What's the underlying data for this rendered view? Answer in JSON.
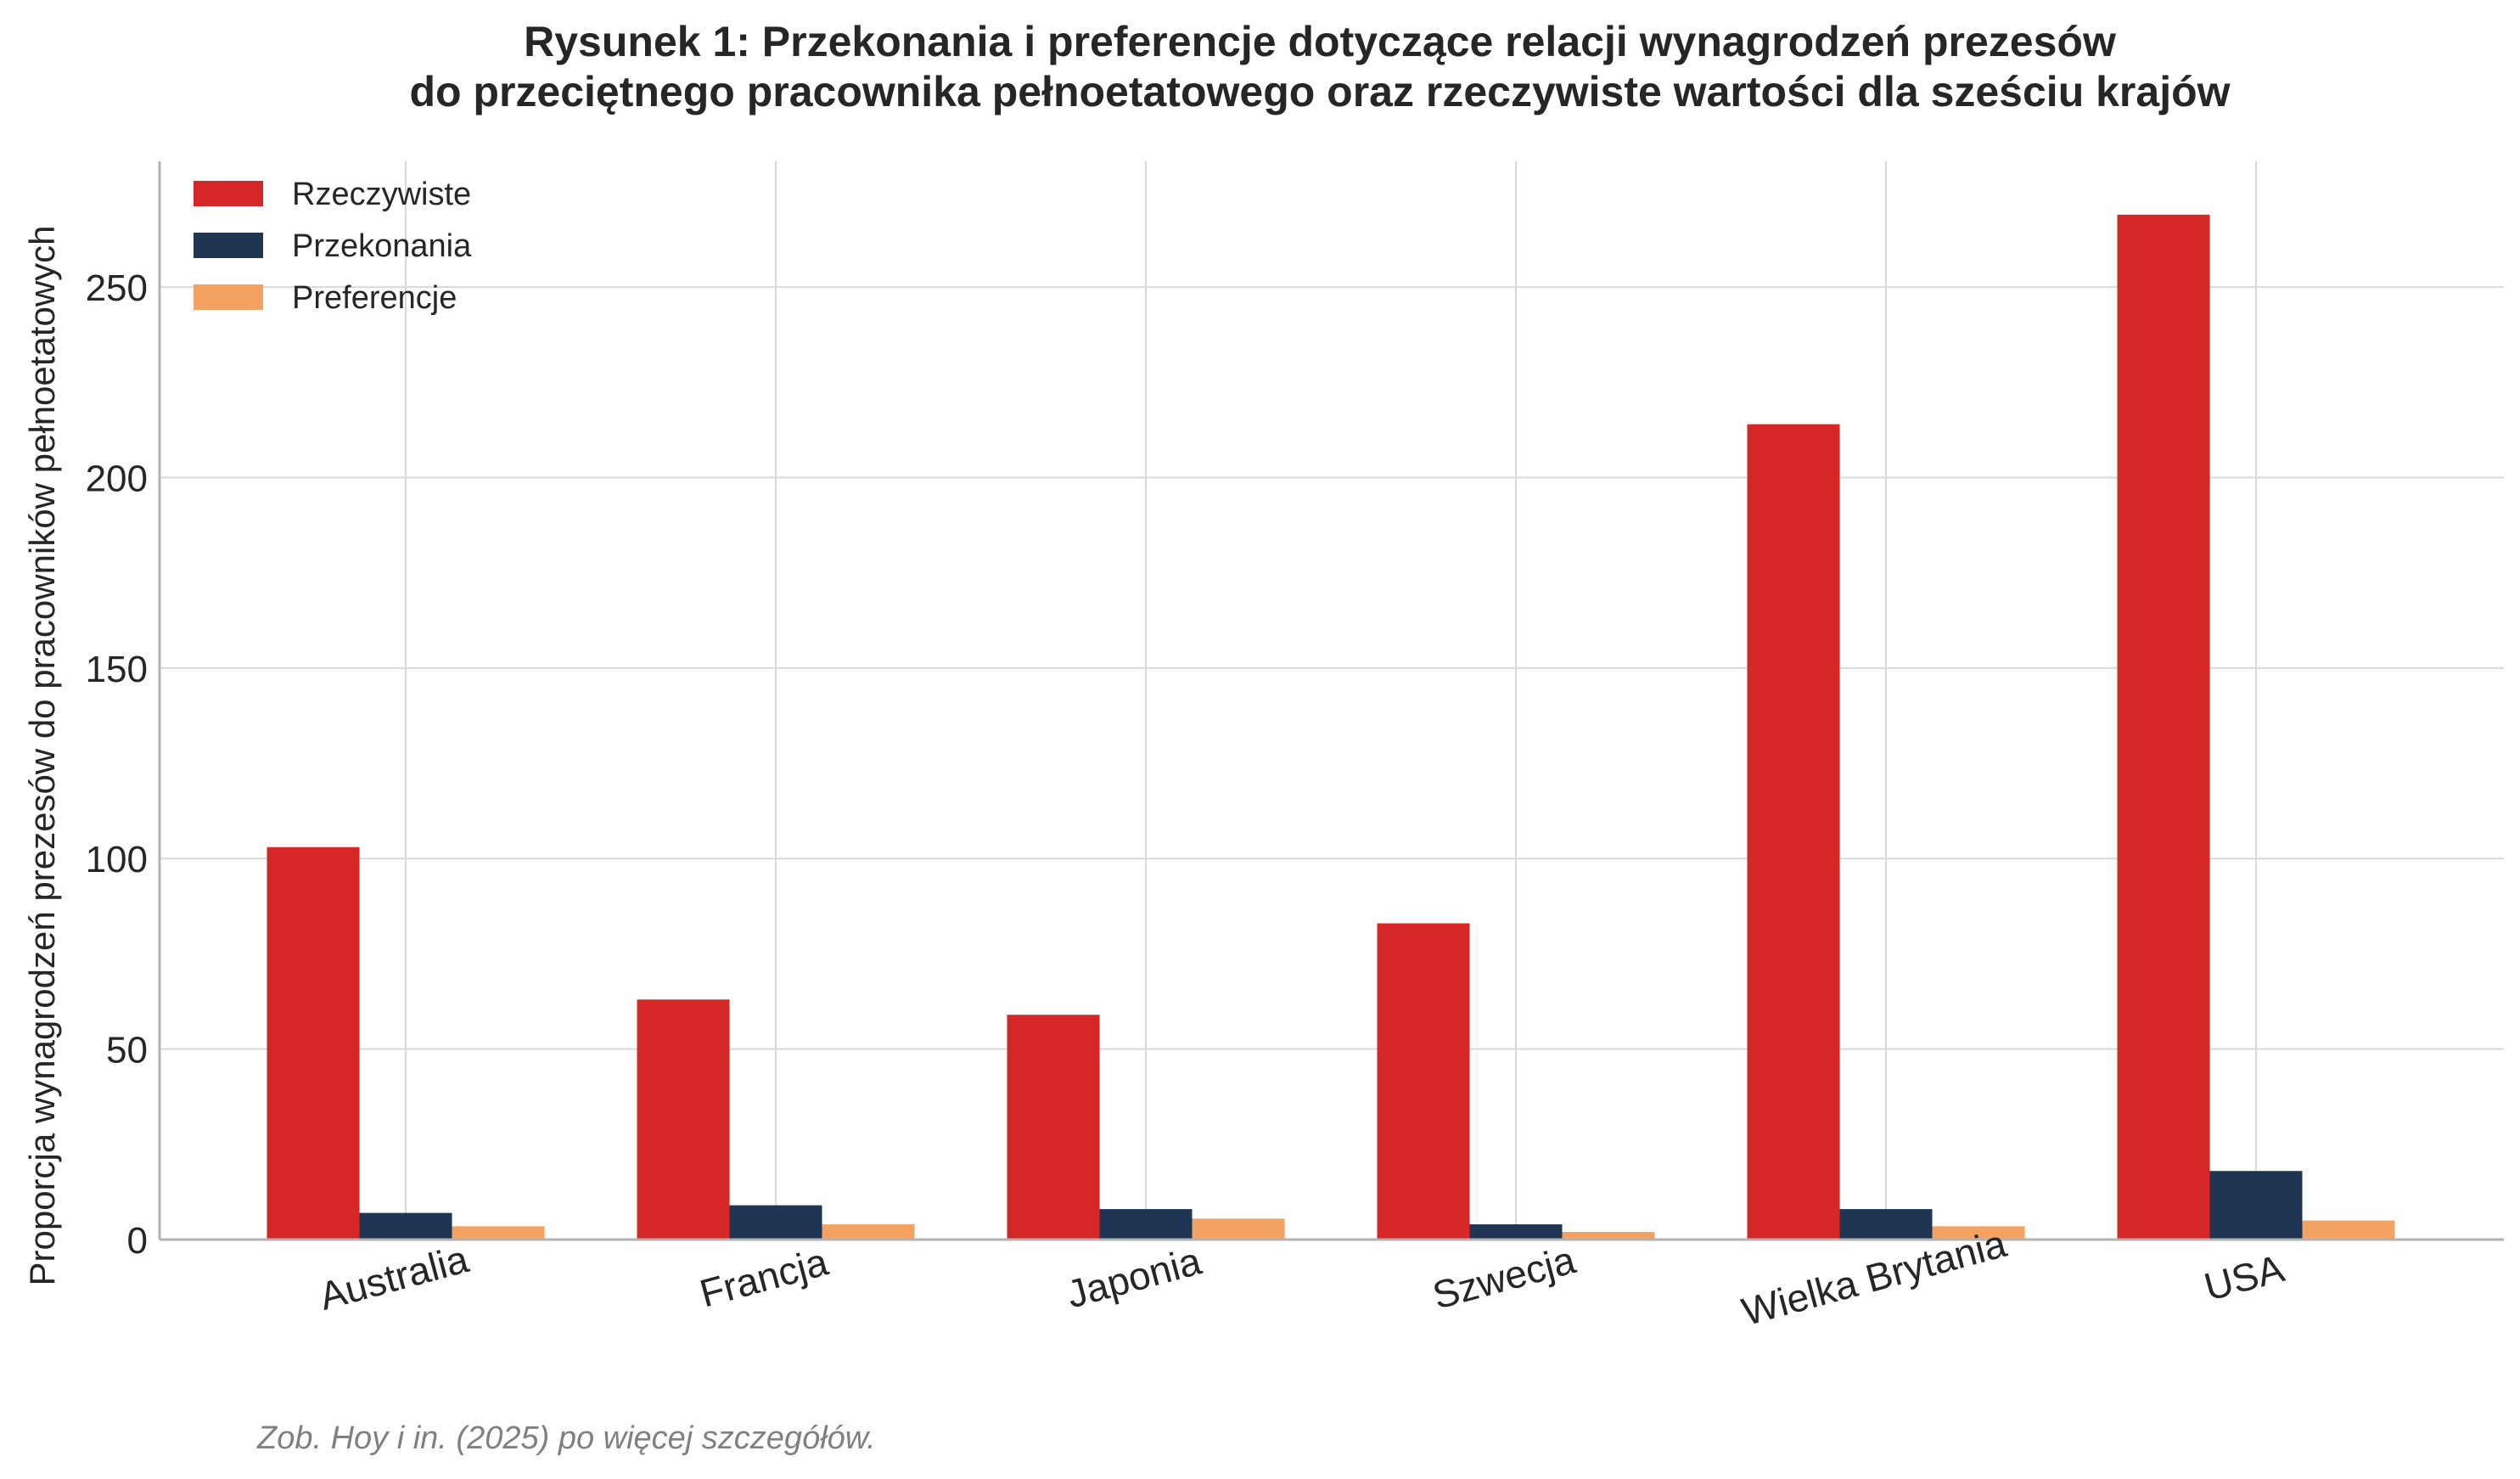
{
  "chart_data": {
    "type": "bar",
    "title_lines": [
      "Rysunek 1: Przekonania i preferencje dotyczące relacji wynagrodzeń prezesów",
      "do przeciętnego pracownika pełnoetatowego oraz rzeczywiste wartości dla sześciu krajów"
    ],
    "xlabel": "",
    "ylabel": "Proporcja wynagrodzeń prezesów do pracowników pełnoetatowych",
    "categories": [
      "Australia",
      "Francja",
      "Japonia",
      "Szwecja",
      "Wielka Brytania",
      "USA"
    ],
    "series": [
      {
        "name": "Rzeczywiste",
        "color": "#d62728",
        "values": [
          103,
          63,
          59,
          83,
          214,
          269
        ]
      },
      {
        "name": "Przekonania",
        "color": "#1f3554",
        "values": [
          7,
          9,
          8,
          4,
          8,
          18
        ]
      },
      {
        "name": "Preferencje",
        "color": "#f4a261",
        "values": [
          3.5,
          4,
          5.5,
          2,
          3.5,
          5
        ]
      }
    ],
    "ylim": [
      0,
      283
    ],
    "yticks": [
      0,
      50,
      100,
      150,
      200,
      250
    ],
    "ytick_labels": [
      "0",
      "50",
      "100",
      "150",
      "200",
      "250"
    ],
    "grid": true,
    "legend_position": "top-left",
    "note": "Zob. Hoy i in. (2025) po więcej szczegółów."
  }
}
